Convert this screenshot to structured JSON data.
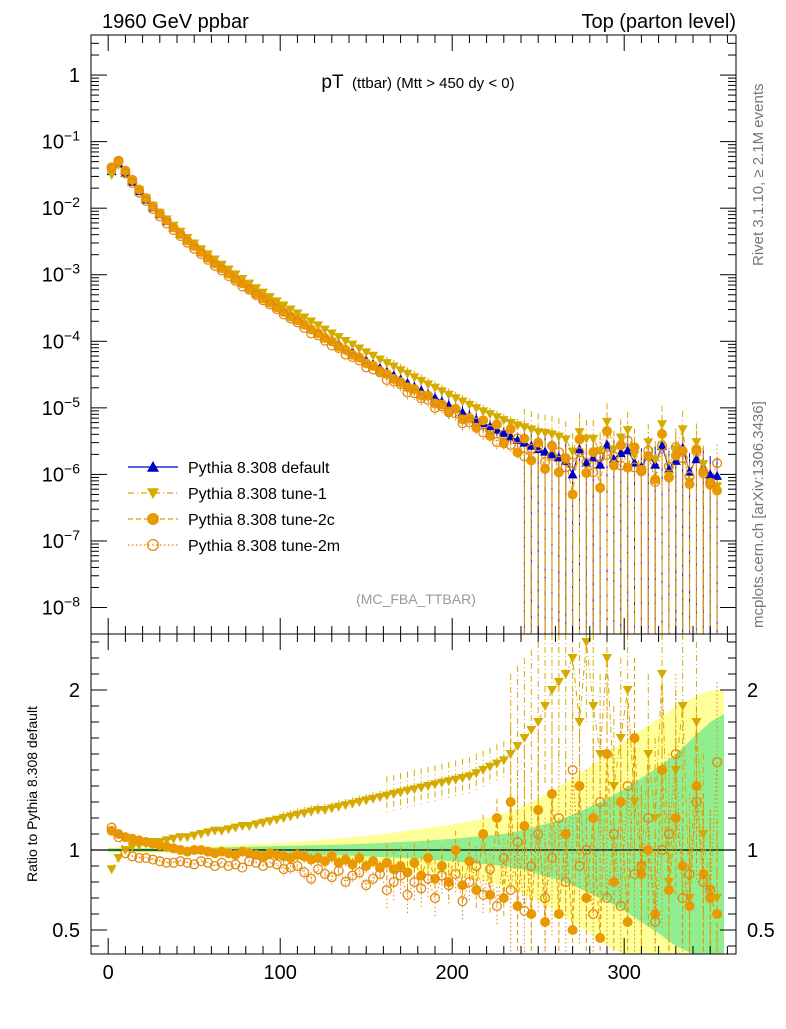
{
  "header": {
    "left": "1960 GeV ppbar",
    "right": "Top (parton level)"
  },
  "side_labels": {
    "rivet": "Rivet 3.1.10, ≥ 2.1M events",
    "mcplots": "mcplots.cern.ch [arXiv:1306.3436]"
  },
  "chart_data": {
    "type": "scatter",
    "title": "pT (ttbar) (Mtt > 450 dy < 0)",
    "title_main": "pT",
    "title_sub": "(ttbar) (Mtt > 450 dy < 0)",
    "watermark": "(MC_FBA_TTBAR)",
    "xlim": [
      -10,
      365
    ],
    "x_ticks": [
      0,
      100,
      200,
      300
    ],
    "upper": {
      "yscale": "log",
      "ylim": [
        4e-09,
        4
      ],
      "y_ticks": [
        {
          "v": 1,
          "label": "1"
        },
        {
          "v": 0.1,
          "label": "10",
          "exp": "−1"
        },
        {
          "v": 0.01,
          "label": "10",
          "exp": "−2"
        },
        {
          "v": 0.001,
          "label": "10",
          "exp": "−3"
        },
        {
          "v": 0.0001,
          "label": "10",
          "exp": "−4"
        },
        {
          "v": 1e-05,
          "label": "10",
          "exp": "−5"
        },
        {
          "v": 1e-06,
          "label": "10",
          "exp": "−6"
        },
        {
          "v": 1e-07,
          "label": "10",
          "exp": "−7"
        },
        {
          "v": 1e-08,
          "label": "10",
          "exp": "−8"
        }
      ],
      "legend_position": "bottom-left"
    },
    "lower": {
      "ylabel": "Ratio to Pythia 8.308 default",
      "ylim": [
        0.35,
        2.35
      ],
      "y_ticks": [
        {
          "v": 0.5,
          "label": "0.5"
        },
        {
          "v": 1,
          "label": "1"
        },
        {
          "v": 2,
          "label": "2"
        }
      ],
      "reference_line": 1
    },
    "series": [
      {
        "name": "Pythia 8.308 default",
        "color": "#0000cc",
        "marker": "triangle-up",
        "line": "solid",
        "x": [
          2,
          6,
          10,
          14,
          18,
          22,
          26,
          30,
          34,
          38,
          42,
          46,
          50,
          54,
          58,
          62,
          66,
          70,
          74,
          78,
          82,
          86,
          90,
          94,
          98,
          102,
          106,
          110,
          114,
          118,
          122,
          126,
          130,
          134,
          138,
          142,
          146,
          150,
          154,
          158,
          162,
          166,
          170,
          174,
          178,
          182,
          186,
          190,
          194,
          198,
          202,
          206,
          210,
          214,
          218,
          222,
          226,
          230,
          234,
          238,
          242,
          246,
          250,
          254,
          258,
          262,
          266,
          270,
          274,
          278,
          282,
          286,
          290,
          294,
          298,
          302,
          306,
          310,
          314,
          318,
          322,
          326,
          330,
          334,
          338,
          342,
          346,
          350,
          354
        ],
        "y": [
          0.036,
          0.047,
          0.034,
          0.025,
          0.018,
          0.0135,
          0.0103,
          0.0081,
          0.0064,
          0.0051,
          0.0041,
          0.0033,
          0.0027,
          0.0022,
          0.00182,
          0.00151,
          0.00126,
          0.00106,
          0.00089,
          0.00075,
          0.00064,
          0.00054,
          0.00046,
          0.00039,
          0.000335,
          0.000288,
          0.000248,
          0.000214,
          0.000185,
          0.00016,
          0.000139,
          0.00012,
          0.000104,
          9.1e-05,
          7.9e-05,
          6.9e-05,
          6e-05,
          5.2e-05,
          4.6e-05,
          4e-05,
          3.5e-05,
          3.1e-05,
          2.7e-05,
          2.37e-05,
          2.08e-05,
          1.83e-05,
          1.61e-05,
          1.42e-05,
          1.25e-05,
          1.1e-05,
          9.7e-06,
          8.6e-06,
          7.6e-06,
          6.7e-06,
          5.9e-06,
          5.3e-06,
          4.7e-06,
          4.2e-06,
          3.7e-06,
          3.3e-06,
          3e-06,
          2.7e-06,
          2.4e-06,
          2.2e-06,
          2e-06,
          1.8e-06,
          1.6e-06,
          1e-06,
          2.4e-06,
          1.5e-06,
          1.8e-06,
          1.4e-06,
          2.8e-06,
          1.7e-06,
          2.1e-06,
          2.3e-06,
          1.5e-06,
          1.3e-06,
          1.9e-06,
          1.4e-06,
          2.7e-06,
          1.2e-06,
          1.6e-06,
          2.5e-06,
          1.1e-06,
          1.7e-06,
          1.3e-06,
          1e-06,
          9.5e-07
        ]
      },
      {
        "name": "Pythia 8.308 tune-1",
        "color": "#d6ab00",
        "marker": "triangle-down",
        "line": "dashdot",
        "x": [
          2,
          6,
          10,
          14,
          18,
          22,
          26,
          30,
          34,
          38,
          42,
          46,
          50,
          54,
          58,
          62,
          66,
          70,
          74,
          78,
          82,
          86,
          90,
          94,
          98,
          102,
          106,
          110,
          114,
          118,
          122,
          126,
          130,
          134,
          138,
          142,
          146,
          150,
          154,
          158,
          162,
          166,
          170,
          174,
          178,
          182,
          186,
          190,
          194,
          198,
          202,
          206,
          210,
          214,
          218,
          222,
          226,
          230,
          234,
          238,
          242,
          246,
          250,
          254,
          258,
          262,
          266,
          270,
          274,
          278,
          282,
          286,
          290,
          294,
          298,
          302,
          306,
          310,
          314,
          318,
          322,
          326,
          330,
          334,
          338,
          342,
          346,
          350,
          354
        ],
        "ratio": [
          0.88,
          0.95,
          1.0,
          1.02,
          1.03,
          1.04,
          1.05,
          1.05,
          1.06,
          1.07,
          1.08,
          1.08,
          1.09,
          1.1,
          1.11,
          1.12,
          1.12,
          1.13,
          1.14,
          1.15,
          1.15,
          1.16,
          1.17,
          1.18,
          1.19,
          1.2,
          1.21,
          1.22,
          1.23,
          1.24,
          1.25,
          1.25,
          1.26,
          1.27,
          1.28,
          1.29,
          1.3,
          1.31,
          1.32,
          1.33,
          1.34,
          1.35,
          1.36,
          1.37,
          1.38,
          1.39,
          1.4,
          1.41,
          1.42,
          1.43,
          1.44,
          1.45,
          1.46,
          1.48,
          1.5,
          1.52,
          1.54,
          1.56,
          1.6,
          1.65,
          1.7,
          1.75,
          1.8,
          1.9,
          2.0,
          2.05,
          2.1,
          2.2,
          1.8,
          2.3,
          1.9,
          1.6,
          2.2,
          1.4,
          1.7,
          2.0,
          1.3,
          0.9,
          1.6,
          1.2,
          2.1,
          0.8,
          1.5,
          1.9,
          0.7,
          1.8,
          1.1,
          0.75,
          0.7
        ]
      },
      {
        "name": "Pythia 8.308 tune-2c",
        "color": "#e89a00",
        "marker": "circle",
        "line": "dashed",
        "x": [
          2,
          6,
          10,
          14,
          18,
          22,
          26,
          30,
          34,
          38,
          42,
          46,
          50,
          54,
          58,
          62,
          66,
          70,
          74,
          78,
          82,
          86,
          90,
          94,
          98,
          102,
          106,
          110,
          114,
          118,
          122,
          126,
          130,
          134,
          138,
          142,
          146,
          150,
          154,
          158,
          162,
          166,
          170,
          174,
          178,
          182,
          186,
          190,
          194,
          198,
          202,
          206,
          210,
          214,
          218,
          222,
          226,
          230,
          234,
          238,
          242,
          246,
          250,
          254,
          258,
          262,
          266,
          270,
          274,
          278,
          282,
          286,
          290,
          294,
          298,
          302,
          306,
          310,
          314,
          318,
          322,
          326,
          330,
          334,
          338,
          342,
          346,
          350,
          354
        ],
        "ratio": [
          1.12,
          1.1,
          1.08,
          1.07,
          1.06,
          1.05,
          1.04,
          1.03,
          1.02,
          1.01,
          1.0,
          0.99,
          1.0,
          1.0,
          0.99,
          0.98,
          0.99,
          0.98,
          0.97,
          0.99,
          0.98,
          0.97,
          0.96,
          0.98,
          0.97,
          0.96,
          0.95,
          0.97,
          0.96,
          0.94,
          0.95,
          0.93,
          0.96,
          0.92,
          0.94,
          0.91,
          0.95,
          0.9,
          0.93,
          0.89,
          0.92,
          0.88,
          0.9,
          0.86,
          0.92,
          0.84,
          0.95,
          0.82,
          0.9,
          0.8,
          1.0,
          0.78,
          0.93,
          0.75,
          1.1,
          0.72,
          1.2,
          0.7,
          1.3,
          0.65,
          1.15,
          0.6,
          1.25,
          0.55,
          1.35,
          0.6,
          1.1,
          0.5,
          1.4,
          0.7,
          1.2,
          0.45,
          1.6,
          0.8,
          1.3,
          0.55,
          1.7,
          0.85,
          1.0,
          0.6,
          1.5,
          0.75,
          1.2,
          0.9,
          0.65,
          1.4,
          0.85,
          0.7,
          0.6
        ]
      },
      {
        "name": "Pythia 8.308 tune-2m",
        "color": "#e08a10",
        "marker": "open-circle",
        "line": "dotted",
        "x": [
          2,
          6,
          10,
          14,
          18,
          22,
          26,
          30,
          34,
          38,
          42,
          46,
          50,
          54,
          58,
          62,
          66,
          70,
          74,
          78,
          82,
          86,
          90,
          94,
          98,
          102,
          106,
          110,
          114,
          118,
          122,
          126,
          130,
          134,
          138,
          142,
          146,
          150,
          154,
          158,
          162,
          166,
          170,
          174,
          178,
          182,
          186,
          190,
          194,
          198,
          202,
          206,
          210,
          214,
          218,
          222,
          226,
          230,
          234,
          238,
          242,
          246,
          250,
          254,
          258,
          262,
          266,
          270,
          274,
          278,
          282,
          286,
          290,
          294,
          298,
          302,
          306,
          310,
          314,
          318,
          322,
          326,
          330,
          334,
          338,
          342,
          346,
          350,
          354
        ],
        "ratio": [
          1.14,
          1.08,
          0.98,
          0.96,
          0.95,
          0.95,
          0.94,
          0.93,
          0.92,
          0.92,
          0.93,
          0.92,
          0.91,
          0.93,
          0.92,
          0.9,
          0.92,
          0.9,
          0.91,
          0.89,
          0.93,
          0.92,
          0.9,
          0.92,
          0.91,
          0.88,
          0.89,
          0.9,
          0.86,
          0.82,
          0.88,
          0.85,
          0.83,
          0.87,
          0.8,
          0.84,
          0.86,
          0.78,
          0.82,
          0.85,
          0.75,
          0.8,
          0.84,
          0.72,
          0.8,
          0.76,
          0.82,
          0.7,
          0.84,
          0.78,
          0.85,
          0.68,
          0.8,
          0.9,
          0.72,
          0.88,
          0.65,
          0.95,
          0.75,
          1.05,
          0.62,
          0.9,
          1.1,
          0.7,
          0.95,
          1.2,
          0.8,
          1.5,
          0.9,
          1.0,
          0.6,
          1.3,
          0.7,
          1.1,
          0.65,
          1.4,
          0.85,
          0.9,
          1.2,
          0.55,
          1.0,
          1.1,
          1.6,
          0.7,
          0.85,
          1.3,
          0.8,
          0.75,
          1.55
        ]
      }
    ],
    "bands": {
      "x": [
        0,
        20,
        40,
        60,
        80,
        100,
        120,
        140,
        160,
        180,
        200,
        210,
        220,
        230,
        240,
        250,
        260,
        270,
        280,
        290,
        300,
        310,
        320,
        330,
        340,
        350,
        358
      ],
      "green_halfwidth": [
        0.01,
        0.01,
        0.012,
        0.015,
        0.02,
        0.025,
        0.03,
        0.035,
        0.045,
        0.055,
        0.07,
        0.08,
        0.09,
        0.1,
        0.12,
        0.15,
        0.18,
        0.22,
        0.27,
        0.32,
        0.38,
        0.45,
        0.52,
        0.6,
        0.7,
        0.8,
        0.85
      ],
      "yellow_halfwidth": [
        0.015,
        0.018,
        0.02,
        0.025,
        0.035,
        0.045,
        0.06,
        0.08,
        0.1,
        0.13,
        0.16,
        0.18,
        0.2,
        0.23,
        0.27,
        0.32,
        0.38,
        0.45,
        0.52,
        0.6,
        0.68,
        0.75,
        0.82,
        0.9,
        0.95,
        1.0,
        1.0
      ],
      "green_color": "#90ee90",
      "yellow_color": "#ffff99"
    }
  }
}
